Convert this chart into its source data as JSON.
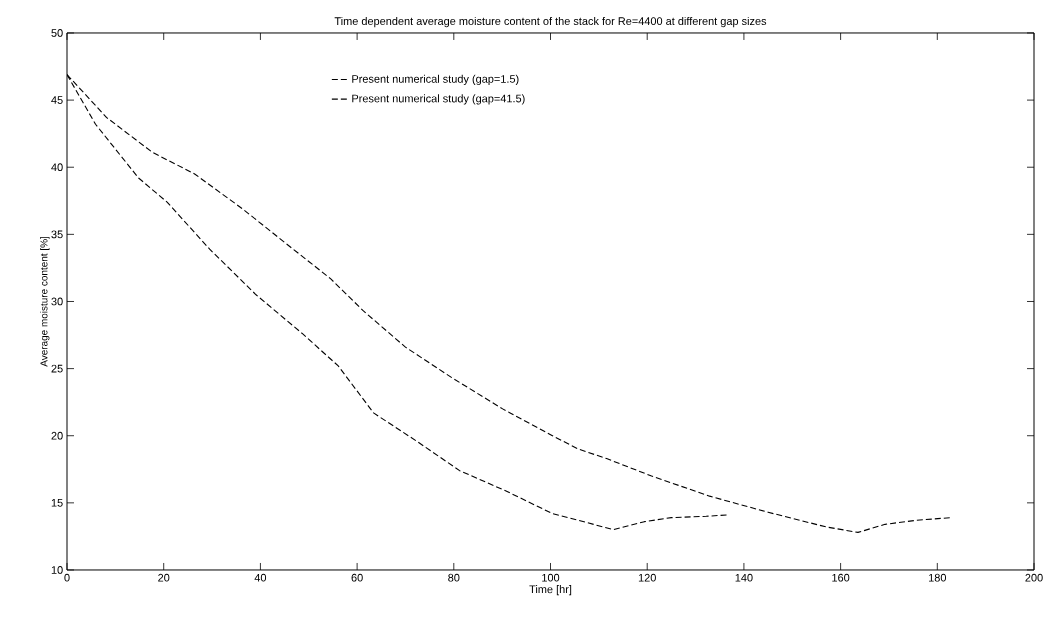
{
  "chart_data": {
    "type": "line",
    "title": "Time dependent average moisture content of the stack for Re=4400 at different gap sizes",
    "xlabel": "Time [hr]",
    "ylabel": "Average moisture content [%]",
    "xlim": [
      0,
      200
    ],
    "ylim": [
      10,
      50
    ],
    "xticks": [
      0,
      20,
      40,
      60,
      80,
      100,
      120,
      140,
      160,
      180,
      200
    ],
    "yticks": [
      10,
      15,
      20,
      25,
      30,
      35,
      40,
      45,
      50
    ],
    "grid": false,
    "legend": "top",
    "marker": "none",
    "series": [
      {
        "name": "Present numerical study (gap=1.5)",
        "color": "#000000",
        "line_style": "dashed",
        "x": [
          0,
          8.2,
          17.7,
          26.4,
          36.3,
          45.0,
          54.5,
          61.3,
          70.0,
          79.7,
          90.1,
          100.4,
          105.8,
          111.6,
          120.9,
          132.9,
          145.0,
          157.1,
          163.6,
          169.2,
          175.6,
          182.8
        ],
        "values": [
          46.9,
          43.7,
          41.1,
          39.5,
          36.9,
          34.4,
          31.7,
          29.3,
          26.6,
          24.3,
          22.0,
          20.0,
          19.0,
          18.3,
          17.0,
          15.5,
          14.3,
          13.2,
          12.8,
          13.4,
          13.7,
          13.9
        ]
      },
      {
        "name": "Present numerical study (gap=41.5)",
        "color": "#000000",
        "line_style": "dashed",
        "x": [
          0,
          5.9,
          14.8,
          20.7,
          29.5,
          39.1,
          48.7,
          56.1,
          63.4,
          72.3,
          81.2,
          90.7,
          100.4,
          105.8,
          113.0,
          119.4,
          125.0,
          132.2,
          136.5
        ],
        "values": [
          46.9,
          43.2,
          39.2,
          37.4,
          33.9,
          30.5,
          27.6,
          25.2,
          21.7,
          19.6,
          17.4,
          15.9,
          14.2,
          13.7,
          13.0,
          13.6,
          13.9,
          14.0,
          14.1
        ]
      }
    ]
  }
}
